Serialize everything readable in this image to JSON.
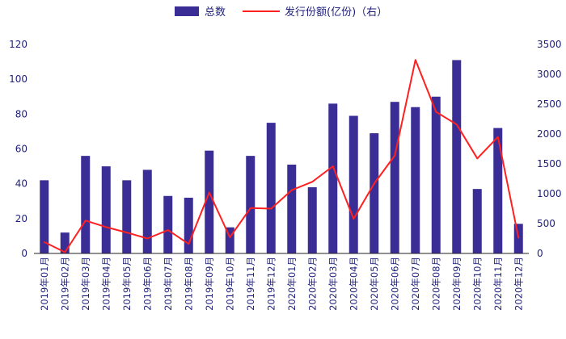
{
  "chart_data": {
    "type": "bar",
    "categories": [
      "2019年01月",
      "2019年02月",
      "2019年03月",
      "2019年04月",
      "2019年05月",
      "2019年06月",
      "2019年07月",
      "2019年08月",
      "2019年09月",
      "2019年10月",
      "2019年11月",
      "2019年12月",
      "2020年01月",
      "2020年02月",
      "2020年03月",
      "2020年04月",
      "2020年05月",
      "2020年06月",
      "2020年07月",
      "2020年08月",
      "2020年09月",
      "2020年10月",
      "2020年11月",
      "2020年12月"
    ],
    "series": [
      {
        "name": "总数",
        "type": "bar",
        "axis": "left",
        "color": "#3a2e96",
        "values": [
          42,
          12,
          56,
          50,
          42,
          48,
          33,
          32,
          59,
          15,
          56,
          75,
          51,
          38,
          86,
          79,
          69,
          87,
          84,
          90,
          111,
          37,
          72,
          17
        ]
      },
      {
        "name": "发行份额(亿份)（右）",
        "type": "line",
        "axis": "right",
        "color": "#ff2020",
        "values": [
          190,
          20,
          550,
          440,
          350,
          250,
          390,
          160,
          1020,
          270,
          760,
          750,
          1060,
          1200,
          1460,
          580,
          1170,
          1640,
          3240,
          2370,
          2160,
          1590,
          1950,
          260
        ]
      }
    ],
    "y_left": {
      "min": 0,
      "max": 120,
      "ticks": [
        "0",
        "20",
        "40",
        "60",
        "80",
        "100",
        "120"
      ]
    },
    "y_right": {
      "min": 0,
      "max": 3500,
      "ticks": [
        "0",
        "500",
        "1000",
        "1500",
        "2000",
        "2500",
        "3000",
        "3500"
      ]
    },
    "legend": {
      "position": "top-center"
    },
    "grid": false
  }
}
